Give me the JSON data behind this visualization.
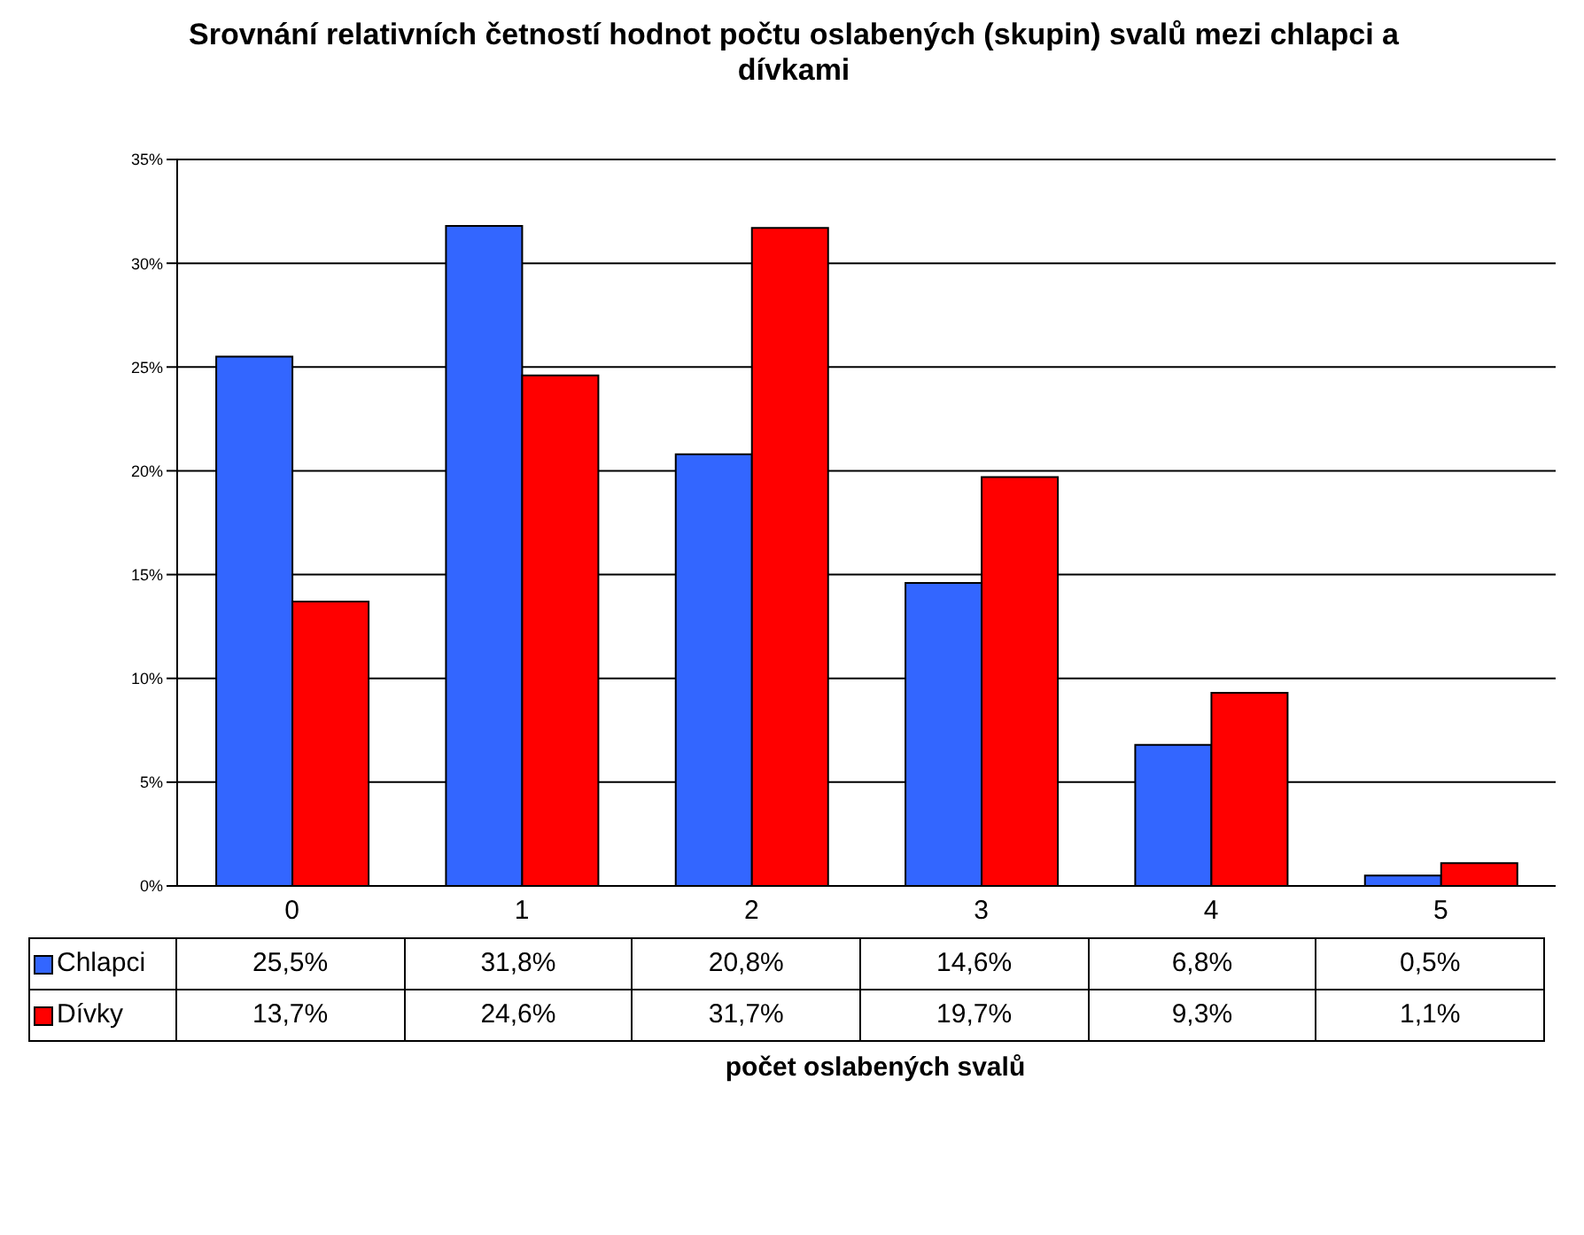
{
  "chart_data": {
    "type": "bar",
    "title": "Srovnání relativních četností hodnot počtu oslabených (skupin) svalů mezi chlapci a dívkami",
    "xlabel": "počet oslabených svalů",
    "categories": [
      "0",
      "1",
      "2",
      "3",
      "4",
      "5"
    ],
    "series": [
      {
        "name": "Chlapci",
        "color": "#3366ff",
        "values": [
          25.5,
          31.8,
          20.8,
          14.6,
          6.8,
          0.5
        ],
        "value_labels": [
          "25,5%",
          "31,8%",
          "20,8%",
          "14,6%",
          "6,8%",
          "0,5%"
        ]
      },
      {
        "name": "Dívky",
        "color": "#ff0000",
        "values": [
          13.7,
          24.6,
          31.7,
          19.7,
          9.3,
          1.1
        ],
        "value_labels": [
          "13,7%",
          "24,6%",
          "31,7%",
          "19,7%",
          "9,3%",
          "1,1%"
        ]
      }
    ],
    "ylim": [
      0,
      35
    ],
    "yticks": [
      {
        "value": 0,
        "label": "0%"
      },
      {
        "value": 5,
        "label": "5%"
      },
      {
        "value": 10,
        "label": "10%"
      },
      {
        "value": 15,
        "label": "15%"
      },
      {
        "value": 20,
        "label": "20%"
      },
      {
        "value": 25,
        "label": "25%"
      },
      {
        "value": 30,
        "label": "30%"
      },
      {
        "value": 35,
        "label": "35%"
      }
    ],
    "grid": "y",
    "legend": "bottom left"
  }
}
